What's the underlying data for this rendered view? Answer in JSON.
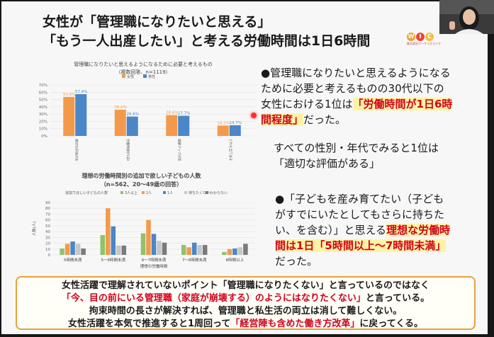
{
  "slide": {
    "title_line1": "女性が「管理職になりたいと思える」",
    "title_line2": "「もう一人出産したい」と考える労働時間は1日6時間",
    "logo": {
      "letters": [
        "W",
        "I",
        "C"
      ],
      "subtext": "株式会社ワークイズライフ"
    }
  },
  "bullet1": {
    "p1": "●管理職になりたいと思えるようになるために必要と考えるものの30代以下の女性における1位は",
    "p1_hl": "「労働時間が1日6時間程度」",
    "p1_end": "だった。",
    "p2": "すべての性別・年代でみると1位は「適切な評価がある」"
  },
  "bullet2": {
    "p1": "●「子どもを産み育てたい（子どもがすでにいたとしてもさらに持ちたい、を含む）」と思える",
    "p1_hl": "理想な労働時間は1日「5時間以上～7時間未満」",
    "p1_end": "だった。"
  },
  "bottom": {
    "l1": "女性活躍で理解されていないポイント「管理職になりたくない」と言っているのではなく",
    "l2_hl": "「今、目の前にいる管理職（家庭が崩壊する）のようにはなりたくない」",
    "l2_end": "と言っている。",
    "l3": "拘束時間の長さが解決すれば、管理職と私生活の両立は消して難しくない。",
    "l4_start": "女性活躍を本気で推進すると1周回って",
    "l4_hl": "「経営陣も含めた働き方改革」",
    "l4_end": "に戻ってくる。"
  },
  "chart_data": [
    {
      "type": "bar",
      "title": "管理職になりたいと思えるようになるために必要と考えるもの",
      "subtitle": "（複数回答、n=1119）",
      "legend": [
        "女性",
        "男性"
      ],
      "categories": [
        "適切な評価がある",
        "労働時間が1日6時間程度",
        "報酬アップが見込める",
        "どれも当てはまらない"
      ],
      "series": [
        {
          "name": "女性",
          "values": [
            53.6,
            36.0,
            28.6,
            14.2
          ],
          "color": "#f39a4a"
        },
        {
          "name": "男性",
          "values": [
            57.4,
            26.6,
            27.7,
            14.7
          ],
          "color": "#4a86c8"
        }
      ],
      "ylim": [
        0,
        70
      ],
      "yticks": [
        "0%",
        "10%",
        "20%",
        "30%",
        "40%",
        "50%",
        "60%",
        "70%"
      ],
      "data_labels": true
    },
    {
      "type": "bar",
      "title": "理想の労働時間別の追加で欲しい子どもの人数",
      "subtitle": "（n=562、20～49歳の回答）",
      "legend_title": "追加でほしい子どもの人数",
      "ylabel": "人数(人)",
      "xlabel": "理想の労働時間",
      "categories": [
        "5時間未満",
        "5～6時間未満",
        "6～7時間未満",
        "7～8時間未満",
        "8時間以上"
      ],
      "series": [
        {
          "name": "3人以上",
          "values": [
            11,
            34,
            37,
            17,
            5
          ],
          "color": "#8fc36a"
        },
        {
          "name": "2人",
          "values": [
            19,
            80,
            60,
            13,
            10
          ],
          "color": "#f39a4a"
        },
        {
          "name": "1人",
          "values": [
            23,
            49,
            36,
            21,
            11
          ],
          "color": "#4a86c8"
        },
        {
          "name": "持ちたくない",
          "values": [
            19,
            16,
            24,
            17,
            13
          ],
          "color": "#c7c7c7"
        },
        {
          "name": "わからない",
          "values": [
            11,
            16,
            21,
            17,
            19
          ],
          "color": "#7a7a7a"
        }
      ],
      "ylim": [
        0,
        90
      ],
      "yticks": [
        "0",
        "10",
        "20",
        "30",
        "40",
        "50",
        "60",
        "70",
        "80",
        "90"
      ]
    }
  ]
}
